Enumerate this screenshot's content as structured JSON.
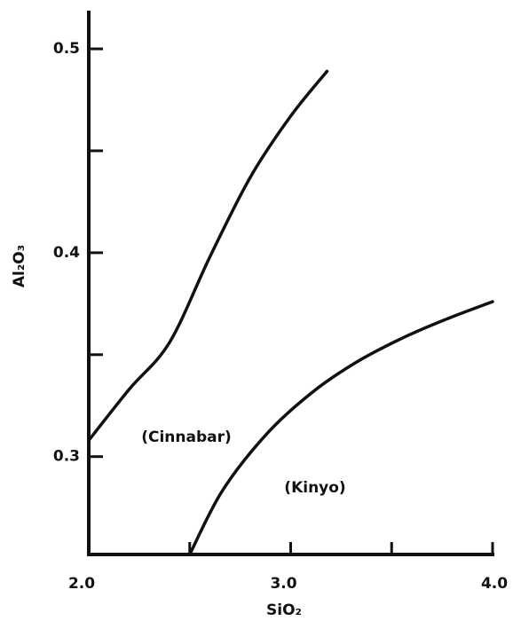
{
  "chart_data": {
    "type": "line",
    "x_label": "SiO₂",
    "y_label": "Al₂O₃",
    "xlim": [
      2.0,
      4.0
    ],
    "ylim": [
      0.252,
      0.517
    ],
    "xticks": [
      {
        "value": 2.0,
        "label": "2.0"
      },
      {
        "value": 3.0,
        "label": "3.0"
      },
      {
        "value": 4.0,
        "label": "4.0"
      }
    ],
    "xminor_ticks": [
      2.5,
      3.5
    ],
    "yticks": [
      0.3,
      0.4,
      0.5
    ],
    "yminor_ticks": [
      0.35,
      0.45
    ],
    "series": [
      {
        "name": "(Cinnabar)",
        "color": "#111111",
        "x": [
          2.0,
          2.2,
          2.4,
          2.6,
          2.8,
          3.0,
          3.18
        ],
        "values": [
          0.308,
          0.333,
          0.356,
          0.398,
          0.437,
          0.467,
          0.489
        ]
      },
      {
        "name": "(Kinyo)",
        "color": "#111111",
        "x": [
          2.5,
          2.66,
          2.88,
          3.1,
          3.32,
          3.55,
          3.76,
          4.0
        ],
        "values": [
          0.252,
          0.283,
          0.311,
          0.331,
          0.346,
          0.358,
          0.367,
          0.376
        ]
      }
    ]
  }
}
